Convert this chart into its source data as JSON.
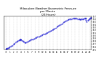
{
  "title": "Milwaukee Weather Barometric Pressure\nper Minute\n(24 Hours)",
  "title_fontsize": 3.0,
  "bg_color": "#ffffff",
  "dot_color": "#0000cc",
  "grid_color": "#b0b0b0",
  "x_ticks": [
    0,
    1,
    2,
    3,
    4,
    5,
    6,
    7,
    8,
    9,
    10,
    11,
    12,
    13,
    14,
    15,
    16,
    17,
    18,
    19,
    20,
    21,
    22,
    23
  ],
  "ylim": [
    29.5,
    30.7
  ],
  "xlim": [
    -0.5,
    23.5
  ],
  "ytick_vals": [
    29.5,
    29.6,
    29.7,
    29.8,
    29.9,
    30.0,
    30.1,
    30.2,
    30.3,
    30.4,
    30.5,
    30.6,
    30.7
  ],
  "ytick_labels": [
    "29.5",
    "29.6",
    "29.7",
    "29.8",
    "29.9",
    "30.0",
    "30.1",
    "30.2",
    "30.3",
    "30.4",
    "30.5",
    "30.6",
    "30.7"
  ],
  "pressure_data": [
    [
      0.0,
      29.52
    ],
    [
      0.1,
      29.53
    ],
    [
      0.2,
      29.54
    ],
    [
      0.5,
      29.56
    ],
    [
      0.8,
      29.58
    ],
    [
      1.0,
      29.6
    ],
    [
      1.3,
      29.63
    ],
    [
      1.6,
      29.66
    ],
    [
      2.0,
      29.7
    ],
    [
      2.3,
      29.73
    ],
    [
      2.7,
      29.77
    ],
    [
      3.0,
      29.8
    ],
    [
      3.2,
      29.82
    ],
    [
      3.5,
      29.84
    ],
    [
      3.7,
      29.85
    ],
    [
      3.9,
      29.87
    ],
    [
      4.0,
      29.88
    ],
    [
      4.2,
      29.85
    ],
    [
      4.4,
      29.82
    ],
    [
      4.7,
      29.79
    ],
    [
      5.0,
      29.77
    ],
    [
      5.3,
      29.76
    ],
    [
      5.6,
      29.77
    ],
    [
      6.0,
      29.8
    ],
    [
      6.3,
      29.82
    ],
    [
      6.6,
      29.84
    ],
    [
      7.0,
      29.86
    ],
    [
      7.3,
      29.88
    ],
    [
      7.7,
      29.9
    ],
    [
      8.0,
      29.92
    ],
    [
      8.3,
      29.94
    ],
    [
      8.6,
      29.96
    ],
    [
      9.0,
      29.98
    ],
    [
      9.3,
      30.0
    ],
    [
      9.7,
      30.02
    ],
    [
      10.0,
      30.04
    ],
    [
      10.3,
      30.06
    ],
    [
      10.7,
      30.08
    ],
    [
      11.0,
      30.1
    ],
    [
      11.3,
      30.12
    ],
    [
      11.7,
      30.14
    ],
    [
      12.0,
      30.17
    ],
    [
      12.3,
      30.19
    ],
    [
      12.7,
      30.22
    ],
    [
      13.0,
      30.24
    ],
    [
      13.3,
      30.27
    ],
    [
      13.7,
      30.3
    ],
    [
      14.0,
      30.33
    ],
    [
      14.3,
      30.36
    ],
    [
      14.7,
      30.39
    ],
    [
      15.0,
      30.42
    ],
    [
      15.3,
      30.45
    ],
    [
      15.7,
      30.48
    ],
    [
      16.0,
      30.51
    ],
    [
      16.3,
      30.54
    ],
    [
      16.7,
      30.56
    ],
    [
      17.0,
      30.58
    ],
    [
      17.3,
      30.6
    ],
    [
      17.7,
      30.61
    ],
    [
      18.0,
      30.62
    ],
    [
      18.3,
      30.63
    ],
    [
      18.7,
      30.64
    ],
    [
      19.0,
      30.64
    ],
    [
      19.3,
      30.63
    ],
    [
      19.7,
      30.62
    ],
    [
      20.0,
      30.61
    ],
    [
      20.3,
      30.6
    ],
    [
      20.5,
      30.59
    ],
    [
      20.7,
      30.6
    ],
    [
      21.0,
      30.61
    ],
    [
      21.2,
      30.62
    ],
    [
      21.5,
      30.63
    ],
    [
      21.7,
      30.63
    ],
    [
      21.9,
      30.64
    ],
    [
      22.0,
      30.57
    ],
    [
      22.2,
      30.52
    ],
    [
      22.4,
      30.56
    ],
    [
      22.6,
      30.59
    ],
    [
      22.8,
      30.62
    ],
    [
      23.0,
      30.64
    ],
    [
      23.3,
      30.65
    ],
    [
      23.5,
      30.66
    ]
  ]
}
